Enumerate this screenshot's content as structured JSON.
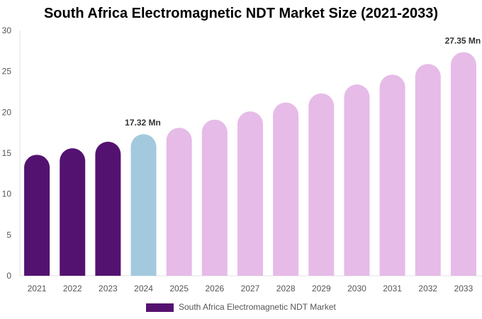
{
  "chart_data": {
    "type": "bar",
    "title": "South Africa Electromagnetic NDT Market Size (2021-2033)",
    "categories": [
      "2021",
      "2022",
      "2023",
      "2024",
      "2025",
      "2026",
      "2027",
      "2028",
      "2029",
      "2030",
      "2031",
      "2032",
      "2033"
    ],
    "series": [
      {
        "name": "South Africa Electromagnetic NDT Market",
        "values": [
          14.8,
          15.6,
          16.4,
          17.32,
          18.1,
          19.1,
          20.1,
          21.2,
          22.3,
          23.4,
          24.6,
          25.9,
          27.35
        ]
      }
    ],
    "bar_colors": [
      "#541270",
      "#541270",
      "#541270",
      "#a3c9de",
      "#e6bbe8",
      "#e6bbe8",
      "#e6bbe8",
      "#e6bbe8",
      "#e6bbe8",
      "#e6bbe8",
      "#e6bbe8",
      "#e6bbe8",
      "#e6bbe8"
    ],
    "data_labels": [
      {
        "category": "2024",
        "text": "17.32 Mn"
      },
      {
        "category": "2033",
        "text": "27.35 Mn"
      }
    ],
    "ylim": [
      0,
      30
    ],
    "yticks": [
      0,
      5,
      10,
      15,
      20,
      25,
      30
    ],
    "xlabel": "",
    "ylabel": "",
    "grid": false,
    "legend_position": "bottom",
    "legend_color": "#541270"
  }
}
